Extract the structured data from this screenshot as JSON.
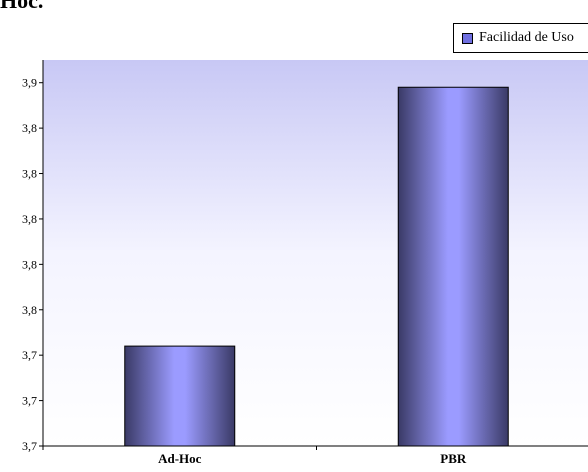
{
  "heading_fragment": "Hoc.",
  "chart_data": {
    "type": "bar",
    "categories": [
      "Ad-Hoc",
      "PBR"
    ],
    "series": [
      {
        "name": "Facilidad de Uso",
        "values": [
          3.744,
          3.858
        ]
      }
    ],
    "ylim": [
      3.7,
      3.87
    ],
    "yticks": [
      3.7,
      3.72,
      3.74,
      3.76,
      3.78,
      3.8,
      3.82,
      3.84,
      3.86
    ],
    "ytick_labels": [
      "3,7",
      "3,7",
      "3,7",
      "3,8",
      "3,8",
      "3,8",
      "3,8",
      "3,8",
      "3,9"
    ],
    "grid": false,
    "legend_position": "top-right",
    "colors": {
      "bar_light": "#9b9bff",
      "bar_dark": "#3a3a66",
      "plot_top": "#c8c8f5",
      "plot_bottom": "#ffffff"
    }
  }
}
